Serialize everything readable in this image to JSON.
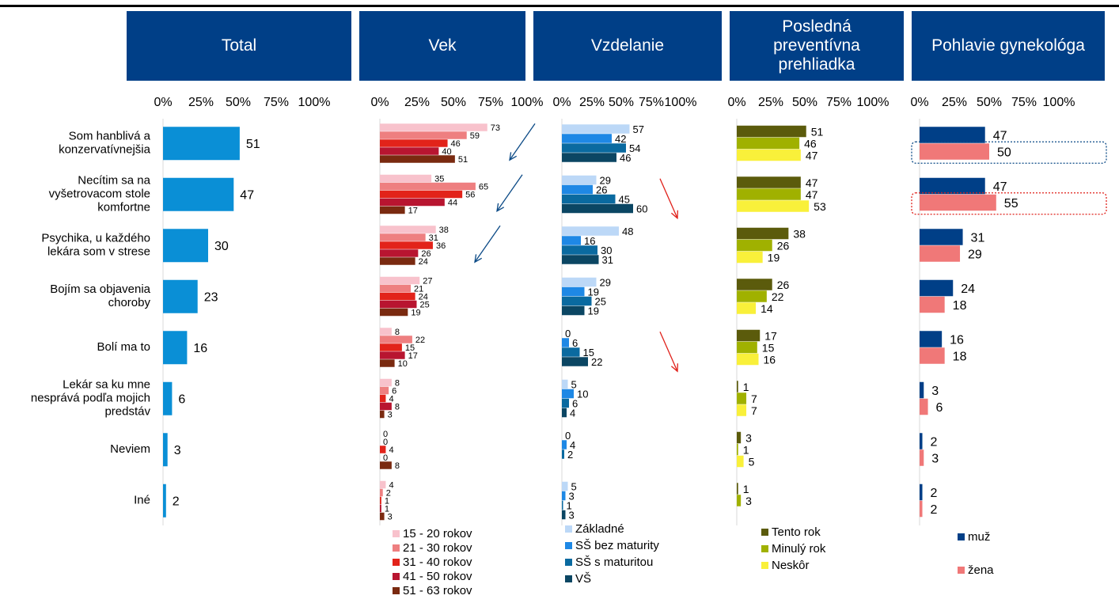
{
  "headers": {
    "total": "Total",
    "vek": "Vek",
    "vzdelanie": "Vzdelanie",
    "prehliadka": "Posledná\npreventívna\nprehliadka",
    "pohlavie": "Pohlavie gynekológa"
  },
  "chart_data": {
    "type": "bar",
    "orientation": "horizontal",
    "unit": "%",
    "xlim": [
      0,
      100
    ],
    "tick_labels": [
      "0%",
      "25%",
      "50%",
      "75%",
      "100%"
    ],
    "categories": [
      "Som hanblivá a\nkonzervatívnejšia",
      "Necítim sa na\nvyšetrovacom stole\nkomfortne",
      "Psychika, u každého\nlekára som v strese",
      "Bojím sa objavenia\nchoroby",
      "Bolí ma to",
      "Lekár sa ku mne\nnesprává podľa mojich\npredstáv",
      "Neviem",
      "Iné"
    ],
    "panels": [
      {
        "id": "total",
        "series": [
          {
            "name": "",
            "color": "#0a8fd6",
            "values": [
              51,
              47,
              30,
              23,
              16,
              6,
              3,
              2
            ]
          }
        ]
      },
      {
        "id": "vek",
        "series": [
          {
            "name": "15 - 20 rokov",
            "color": "#f8c2cc",
            "values": [
              73,
              35,
              38,
              27,
              8,
              8,
              0,
              4
            ]
          },
          {
            "name": "21 - 30 rokov",
            "color": "#ee7f80",
            "values": [
              59,
              65,
              31,
              21,
              22,
              6,
              0,
              2
            ]
          },
          {
            "name": "31 - 40 rokov",
            "color": "#e2231a",
            "values": [
              46,
              56,
              36,
              24,
              15,
              4,
              4,
              1
            ]
          },
          {
            "name": "41 - 50 rokov",
            "color": "#b81530",
            "values": [
              40,
              44,
              26,
              25,
              17,
              8,
              0,
              1
            ]
          },
          {
            "name": "51 - 63 rokov",
            "color": "#7a2a10",
            "values": [
              51,
              17,
              24,
              19,
              10,
              3,
              8,
              3
            ]
          }
        ]
      },
      {
        "id": "vzdelanie",
        "series": [
          {
            "name": "Základné",
            "color": "#bcd8f7",
            "values": [
              57,
              29,
              48,
              29,
              0,
              5,
              0,
              5
            ]
          },
          {
            "name": "SŠ bez maturity",
            "color": "#1e88e5",
            "values": [
              42,
              26,
              16,
              19,
              6,
              10,
              4,
              3
            ]
          },
          {
            "name": "SŠ s maturitou",
            "color": "#0a6aa0",
            "values": [
              54,
              45,
              30,
              25,
              15,
              6,
              2,
              1
            ]
          },
          {
            "name": "VŠ",
            "color": "#0b4663",
            "values": [
              46,
              60,
              31,
              19,
              22,
              4,
              null,
              3
            ]
          }
        ]
      },
      {
        "id": "prehliadka",
        "series": [
          {
            "name": "Tento rok",
            "color": "#5b5b0c",
            "values": [
              51,
              47,
              38,
              26,
              17,
              1,
              3,
              1
            ]
          },
          {
            "name": "Minulý rok",
            "color": "#a0b100",
            "values": [
              46,
              47,
              26,
              22,
              15,
              7,
              1,
              3
            ]
          },
          {
            "name": "Neskôr",
            "color": "#f9f03a",
            "values": [
              47,
              53,
              19,
              14,
              16,
              7,
              5,
              null
            ]
          }
        ]
      },
      {
        "id": "pohlavie",
        "series": [
          {
            "name": "muž",
            "color": "#003f87",
            "values": [
              47,
              47,
              31,
              24,
              16,
              3,
              2,
              2
            ]
          },
          {
            "name": "žena",
            "color": "#f07878",
            "values": [
              50,
              55,
              29,
              18,
              18,
              6,
              3,
              2
            ]
          }
        ]
      }
    ]
  },
  "annotations": {
    "arrows": [
      {
        "panel": "vek",
        "row": 0,
        "color": "#0b4a86"
      },
      {
        "panel": "vek",
        "row": 1,
        "color": "#0b4a86"
      },
      {
        "panel": "vek",
        "row": 2,
        "color": "#0b4a86"
      },
      {
        "panel": "vzdelanie",
        "row": 1,
        "color": "#e0201a"
      },
      {
        "panel": "vzdelanie",
        "row": 4,
        "color": "#e0201a"
      }
    ],
    "highlight_boxes": [
      {
        "panel": "pohlavie",
        "row": 0,
        "series": "žena",
        "color": "#0b4a86"
      },
      {
        "panel": "pohlavie",
        "row": 1,
        "series": "žena",
        "color": "#e0201a"
      }
    ]
  }
}
